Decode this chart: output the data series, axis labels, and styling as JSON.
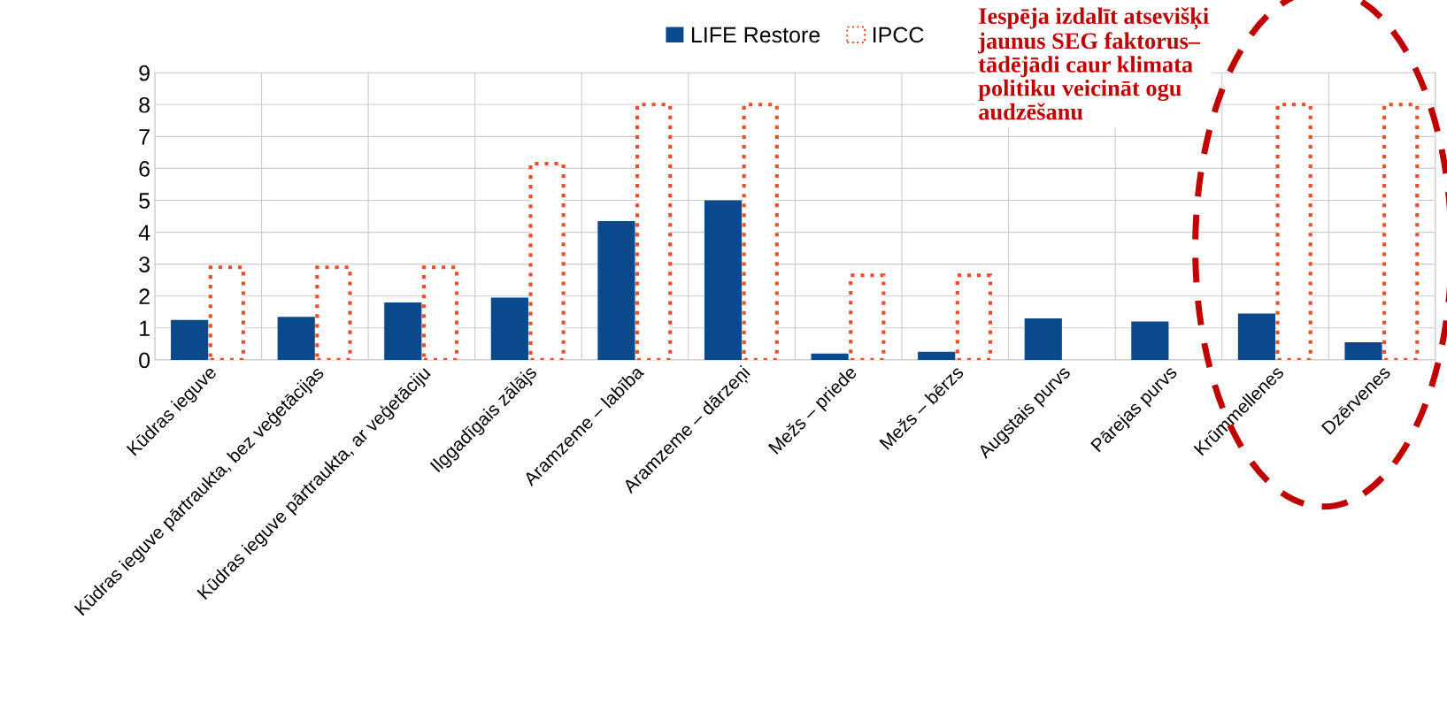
{
  "chart_data": {
    "type": "bar",
    "categories": [
      "Kūdras ieguve",
      "Kūdras ieguve pārtraukta, bez veģetācijas",
      "Kūdras ieguve pārtraukta, ar veģetāciju",
      "Ilggadīgais zālājs",
      "Aramzeme – labība",
      "Aramzeme – dārzeņi",
      "Mežs – priede",
      "Mežs – bērzs",
      "Augstais purvs",
      "Pārejas purvs",
      "Krūmmellenes",
      "Dzērvenes"
    ],
    "series": [
      {
        "name": "LIFE Restore",
        "color": "#0a4a8c",
        "values": [
          1.25,
          1.35,
          1.8,
          1.95,
          4.35,
          5.0,
          0.2,
          0.25,
          1.3,
          1.2,
          1.45,
          0.55
        ]
      },
      {
        "name": "IPCC",
        "color": "#e8502a",
        "line_style": "dotted",
        "values": [
          2.9,
          2.9,
          2.9,
          6.15,
          8.0,
          8.0,
          2.65,
          2.65,
          null,
          null,
          8.0,
          8.0
        ]
      }
    ],
    "ylim": [
      0,
      9
    ],
    "yticks": [
      0,
      1,
      2,
      3,
      4,
      5,
      6,
      7,
      8,
      9
    ],
    "grid": true,
    "legend": "top",
    "annotations": [
      "Iespēja izdalīt atsevišķi\njaunus SEG faktorus–\ntādējādi caur klimata\npolitiku veicināt ogu\naudzēšanu"
    ]
  }
}
